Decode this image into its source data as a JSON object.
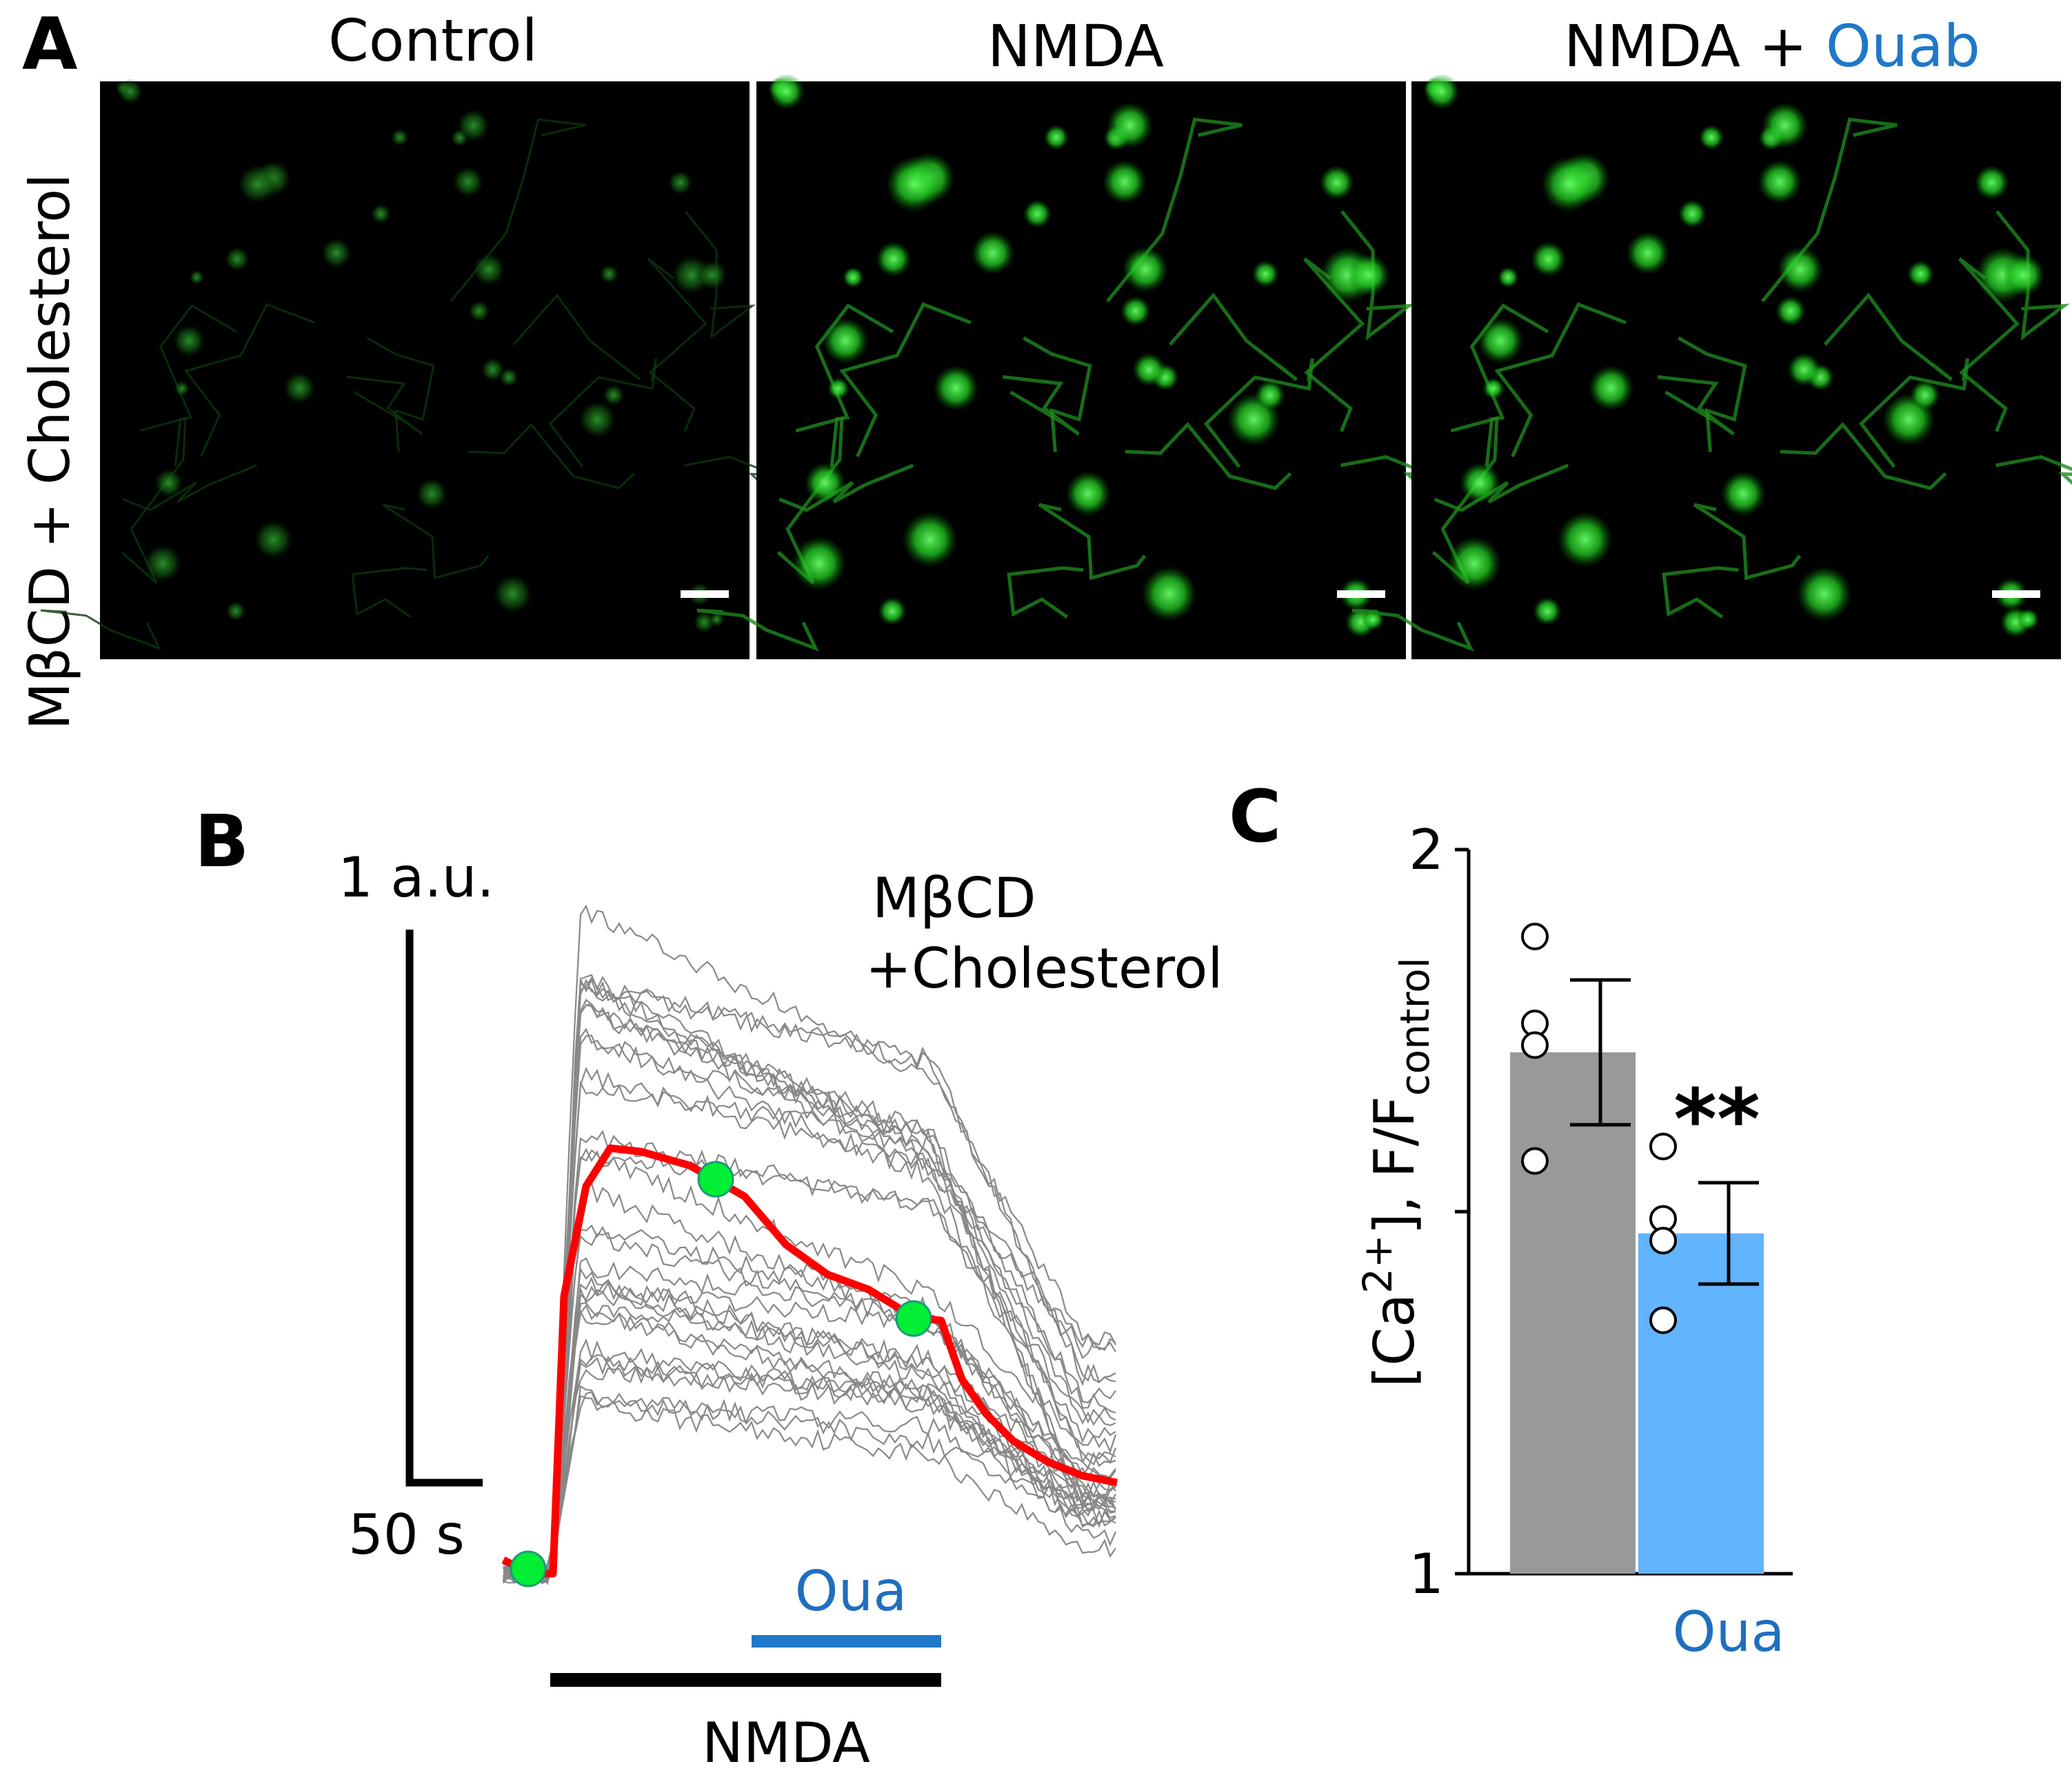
{
  "panel_a": {
    "label": "A",
    "row_label": "MβCD + Cholesterol",
    "columns": [
      {
        "title": "Control",
        "brightness": "dim"
      },
      {
        "title": "NMDA",
        "brightness": "bright"
      },
      {
        "title_prefix": "NMDA + ",
        "title_highlight": "Ouab",
        "brightness": "bright"
      }
    ],
    "image_color": "#00ff00",
    "scale_bar_color": "#ffffff"
  },
  "panel_b": {
    "label": "B",
    "condition_line1": "MβCD",
    "condition_line2": "+Cholesterol",
    "scale_y_label": "1 a.u.",
    "scale_x_label": "50 s",
    "bar_nmda_label": "NMDA",
    "bar_oua_label": "Oua",
    "trace_color": "#888888",
    "mean_color": "#ff0000",
    "marker_color": "#00ee33",
    "oua_color": "#1166cc"
  },
  "chart_data": {
    "type": "bar",
    "panel": "C",
    "ylabel_base": "[Ca",
    "ylabel_sup": "2+",
    "ylabel_mid": "], F/F",
    "ylabel_sub": "control",
    "categories": [
      "",
      "Oua"
    ],
    "values": [
      1.72,
      1.47
    ],
    "errors": [
      0.1,
      0.07
    ],
    "points": [
      [
        1.88,
        1.76,
        1.73,
        1.57
      ],
      [
        1.59,
        1.49,
        1.46,
        1.35
      ]
    ],
    "ylim": [
      1,
      2
    ],
    "yticks": [
      "1",
      "2"
    ],
    "bar_colors": [
      "#999999",
      "#62b4fc"
    ],
    "significance": "**",
    "category_label_color": "#1f6fc0"
  }
}
